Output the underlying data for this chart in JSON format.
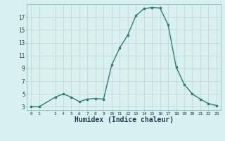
{
  "x": [
    0,
    1,
    3,
    4,
    5,
    6,
    7,
    8,
    9,
    10,
    11,
    12,
    13,
    14,
    15,
    16,
    17,
    18,
    19,
    20,
    21,
    22,
    23
  ],
  "y": [
    3,
    3,
    4.5,
    5,
    4.5,
    3.8,
    4.2,
    4.3,
    4.2,
    9.5,
    12.2,
    14.2,
    17.2,
    18.3,
    18.5,
    18.4,
    15.8,
    9.2,
    6.5,
    5,
    4.2,
    3.5,
    3.2
  ],
  "line_color": "#2d7d74",
  "marker_color": "#2d7d74",
  "bg_color": "#d9f0f0",
  "grid_color_major": "#c4d8d5",
  "grid_color_minor": "#e8f4f2",
  "xlabel": "Humidex (Indice chaleur)",
  "xlabel_color": "#1a3a50",
  "xlabel_fontsize": 7,
  "ylim": [
    2.5,
    19.0
  ],
  "xlim": [
    -0.5,
    23.5
  ],
  "yticks": [
    3,
    5,
    7,
    9,
    11,
    13,
    15,
    17
  ],
  "xticks": [
    0,
    1,
    3,
    4,
    5,
    6,
    7,
    8,
    9,
    10,
    11,
    12,
    13,
    14,
    15,
    16,
    17,
    18,
    19,
    20,
    21,
    22,
    23
  ]
}
